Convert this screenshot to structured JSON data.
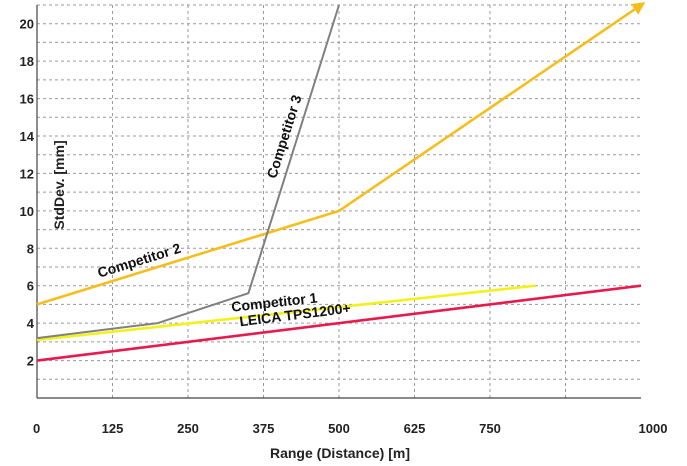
{
  "chart_data": {
    "type": "line",
    "title": "",
    "xlabel": "Range (Distance) [m]",
    "ylabel": "StdDev. [mm]",
    "xlim": [
      0,
      1000
    ],
    "ylim": [
      0,
      21
    ],
    "x_ticks": [
      "0",
      "125",
      "250",
      "375",
      "500",
      "625",
      "750",
      "1000"
    ],
    "x_tick_values": [
      0,
      125,
      250,
      375,
      500,
      625,
      750,
      1000
    ],
    "y_ticks": [
      "2",
      "4",
      "6",
      "8",
      "10",
      "12",
      "14",
      "16",
      "18",
      "20"
    ],
    "y_tick_values": [
      2,
      4,
      6,
      8,
      10,
      12,
      14,
      16,
      18,
      20
    ],
    "grid": true,
    "series": [
      {
        "name": "LEICA TPS1200+",
        "color": "#e8194c",
        "x": [
          0,
          1000
        ],
        "y": [
          2,
          6
        ]
      },
      {
        "name": "Competitor 1",
        "color": "#f2f21a",
        "x": [
          0,
          825
        ],
        "y": [
          3.1,
          6
        ]
      },
      {
        "name": "Competitor 2",
        "color": "#f5be1e",
        "x": [
          0,
          500,
          1000
        ],
        "y": [
          5,
          10,
          21
        ],
        "arrow_end": true
      },
      {
        "name": "Competitor 3",
        "color": "#808080",
        "x": [
          0,
          200,
          350,
          500
        ],
        "y": [
          3.2,
          4,
          5.6,
          21
        ]
      }
    ]
  }
}
